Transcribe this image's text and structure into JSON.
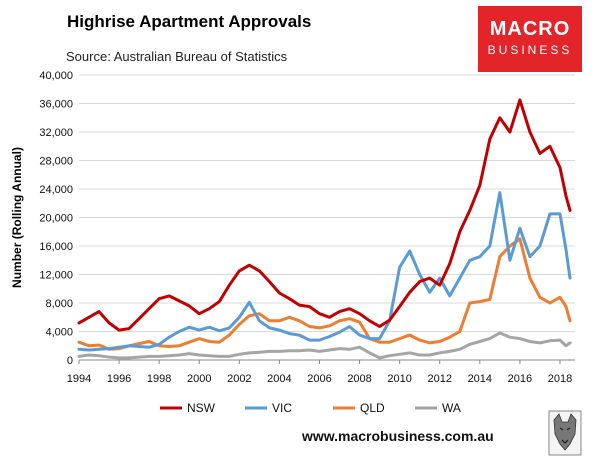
{
  "title": "Highrise Apartment Approvals",
  "subtitle": "Source: Australian Bureau of Statistics",
  "logo": {
    "line1": "MACRO",
    "line2": "BUSINESS"
  },
  "website": "www.macrobusiness.com.au",
  "colors": {
    "NSW": "#c00000",
    "VIC": "#5b9bd5",
    "QLD": "#ed7d31",
    "WA": "#a5a5a5",
    "logo_bg": "#e3252a"
  },
  "chart_data": {
    "type": "line",
    "title": "Highrise Apartment Approvals",
    "ylabel": "Number (Rolling Annual)",
    "xlabel": "",
    "ylim": [
      0,
      40000
    ],
    "xlim": [
      1994,
      2018.75
    ],
    "yticks": [
      0,
      4000,
      8000,
      12000,
      16000,
      20000,
      24000,
      28000,
      32000,
      36000,
      40000
    ],
    "ytick_labels": [
      "0",
      "4,000",
      "8,000",
      "12,000",
      "16,000",
      "20,000",
      "24,000",
      "28,000",
      "32,000",
      "36,000",
      "40,000"
    ],
    "xticks": [
      1994,
      1996,
      1998,
      2000,
      2002,
      2004,
      2006,
      2008,
      2010,
      2012,
      2014,
      2016,
      2018
    ],
    "xtick_labels": [
      "1994",
      "1996",
      "1998",
      "2000",
      "2002",
      "2004",
      "2006",
      "2008",
      "2010",
      "2012",
      "2014",
      "2016",
      "2018"
    ],
    "grid": "horizontal",
    "legend": "bottom",
    "series": [
      {
        "name": "NSW",
        "x": [
          1994,
          1994.5,
          1995,
          1995.5,
          1996,
          1996.5,
          1997,
          1997.5,
          1998,
          1998.5,
          1999,
          1999.5,
          2000,
          2000.5,
          2001,
          2001.5,
          2002,
          2002.5,
          2003,
          2003.5,
          2004,
          2004.5,
          2005,
          2005.5,
          2006,
          2006.5,
          2007,
          2007.5,
          2008,
          2008.5,
          2009,
          2009.5,
          2010,
          2010.5,
          2011,
          2011.5,
          2012,
          2012.5,
          2013,
          2013.5,
          2014,
          2014.5,
          2015,
          2015.5,
          2016,
          2016.5,
          2017,
          2017.5,
          2018,
          2018.3,
          2018.5
        ],
        "values": [
          5200,
          6000,
          6800,
          5200,
          4200,
          4400,
          5800,
          7200,
          8600,
          9000,
          8300,
          7600,
          6500,
          7200,
          8200,
          10500,
          12500,
          13300,
          12500,
          11000,
          9400,
          8600,
          7700,
          7500,
          6500,
          6000,
          6800,
          7200,
          6500,
          5500,
          4700,
          5600,
          7500,
          9500,
          11000,
          11500,
          10500,
          13500,
          18000,
          21000,
          24500,
          31000,
          34000,
          32000,
          36500,
          32000,
          29000,
          30000,
          27000,
          23000,
          21000
        ]
      },
      {
        "name": "VIC",
        "x": [
          1994,
          1994.5,
          1995,
          1995.5,
          1996,
          1996.5,
          1997,
          1997.5,
          1998,
          1998.5,
          1999,
          1999.5,
          2000,
          2000.5,
          2001,
          2001.5,
          2002,
          2002.5,
          2003,
          2003.5,
          2004,
          2004.5,
          2005,
          2005.5,
          2006,
          2006.5,
          2007,
          2007.5,
          2008,
          2008.5,
          2009,
          2009.5,
          2010,
          2010.5,
          2011,
          2011.5,
          2012,
          2012.5,
          2013,
          2013.5,
          2014,
          2014.5,
          2015,
          2015.5,
          2016,
          2016.5,
          2017,
          2017.5,
          2018,
          2018.3,
          2018.5
        ],
        "values": [
          1500,
          1400,
          1500,
          1600,
          1800,
          2000,
          1900,
          1800,
          2200,
          3200,
          4000,
          4600,
          4200,
          4600,
          4100,
          4500,
          6000,
          8100,
          5500,
          4500,
          4200,
          3700,
          3500,
          2800,
          2800,
          3300,
          3900,
          4700,
          3500,
          3000,
          3000,
          5500,
          13000,
          15300,
          12000,
          9500,
          11500,
          9000,
          11500,
          14000,
          14500,
          16000,
          23500,
          14000,
          18500,
          14500,
          16000,
          20500,
          20500,
          15500,
          11500
        ]
      },
      {
        "name": "QLD",
        "x": [
          1994,
          1994.5,
          1995,
          1995.5,
          1996,
          1996.5,
          1997,
          1997.5,
          1998,
          1998.5,
          1999,
          1999.5,
          2000,
          2000.5,
          2001,
          2001.5,
          2002,
          2002.5,
          2003,
          2003.5,
          2004,
          2004.5,
          2005,
          2005.5,
          2006,
          2006.5,
          2007,
          2007.5,
          2008,
          2008.5,
          2009,
          2009.5,
          2010,
          2010.5,
          2011,
          2011.5,
          2012,
          2012.5,
          2013,
          2013.5,
          2014,
          2014.5,
          2015,
          2015.5,
          2016,
          2016.5,
          2017,
          2017.5,
          2018,
          2018.3,
          2018.5
        ],
        "values": [
          2500,
          2000,
          2100,
          1500,
          1600,
          2000,
          2300,
          2600,
          2000,
          1900,
          2000,
          2500,
          3000,
          2600,
          2500,
          3500,
          5000,
          6200,
          6500,
          5500,
          5500,
          6000,
          5500,
          4700,
          4500,
          4800,
          5500,
          5800,
          5300,
          3000,
          2500,
          2500,
          3000,
          3500,
          2800,
          2400,
          2600,
          3200,
          4000,
          8000,
          8200,
          8500,
          14500,
          16000,
          17000,
          11500,
          8800,
          8000,
          8800,
          7500,
          5500
        ]
      },
      {
        "name": "WA",
        "x": [
          1994,
          1994.5,
          1995,
          1995.5,
          1996,
          1996.5,
          1997,
          1997.5,
          1998,
          1998.5,
          1999,
          1999.5,
          2000,
          2000.5,
          2001,
          2001.5,
          2002,
          2002.5,
          2003,
          2003.5,
          2004,
          2004.5,
          2005,
          2005.5,
          2006,
          2006.5,
          2007,
          2007.5,
          2008,
          2008.5,
          2009,
          2009.5,
          2010,
          2010.5,
          2011,
          2011.5,
          2012,
          2012.5,
          2013,
          2013.5,
          2014,
          2014.5,
          2015,
          2015.5,
          2016,
          2016.5,
          2017,
          2017.5,
          2018,
          2018.3,
          2018.5
        ],
        "values": [
          500,
          700,
          600,
          400,
          300,
          300,
          400,
          500,
          500,
          600,
          700,
          900,
          700,
          600,
          500,
          500,
          800,
          1000,
          1100,
          1200,
          1200,
          1300,
          1300,
          1400,
          1200,
          1400,
          1600,
          1500,
          1800,
          1000,
          300,
          600,
          800,
          1000,
          700,
          700,
          1000,
          1200,
          1500,
          2200,
          2600,
          3000,
          3800,
          3200,
          3000,
          2600,
          2400,
          2700,
          2800,
          2000,
          2400
        ]
      }
    ]
  }
}
